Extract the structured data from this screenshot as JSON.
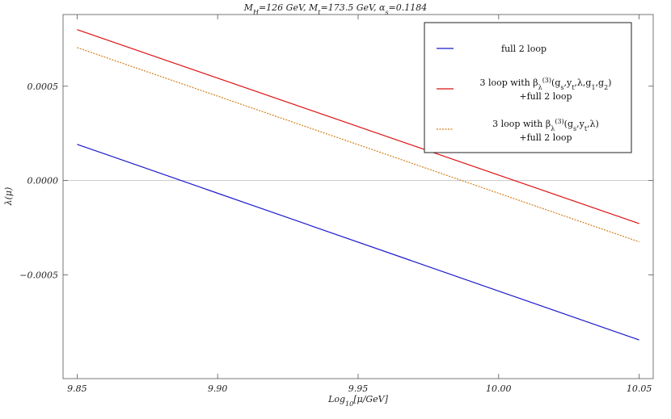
{
  "chart_data": {
    "type": "line",
    "title": "M_H=126 GeV,  M_t=173.5 GeV,  α_s=0.1184",
    "xlabel": "Log_10[μ/GeV]",
    "ylabel": "λ(μ)",
    "xlim": [
      9.845,
      10.055
    ],
    "ylim": [
      -0.00105,
      0.00088
    ],
    "x_ticks": [
      9.85,
      9.9,
      9.95,
      10.0,
      10.05
    ],
    "x_tick_labels": [
      "9.85",
      "9.90",
      "9.95",
      "10.00",
      "10.05"
    ],
    "y_ticks": [
      0.0005,
      0.0,
      -0.0005
    ],
    "y_tick_labels": [
      "0.0005",
      "0.0000",
      "−0.0005"
    ],
    "zero_line": true,
    "legend_position": "top-right",
    "series": [
      {
        "name": "full 2 loop",
        "legend_lines": [
          "full 2 loop"
        ],
        "color": "#1a1acc",
        "dash": "solid",
        "x": [
          9.85,
          10.05
        ],
        "y": [
          0.000192,
          -0.000845
        ]
      },
      {
        "name": "3 loop with β_λ^(3)(g_s,y_t,λ,g_1,g_2) +full 2 loop",
        "legend_lines": [
          "3 loop with β_λ^(3)(g_s,y_t,λ,g_1,g_2)",
          "+full 2 loop"
        ],
        "color": "#dd1111",
        "dash": "solid",
        "x": [
          9.85,
          10.05
        ],
        "y": [
          0.0008,
          -0.000228
        ]
      },
      {
        "name": "3 loop with β_λ^(3)(g_s,y_t,λ) +full 2 loop",
        "legend_lines": [
          "3 loop with β_λ^(3)(g_s,y_t,λ)",
          "+full 2 loop"
        ],
        "color": "#d2801a",
        "dash": "dashed",
        "x": [
          9.85,
          10.05
        ],
        "y": [
          0.000705,
          -0.000325
        ]
      }
    ]
  }
}
